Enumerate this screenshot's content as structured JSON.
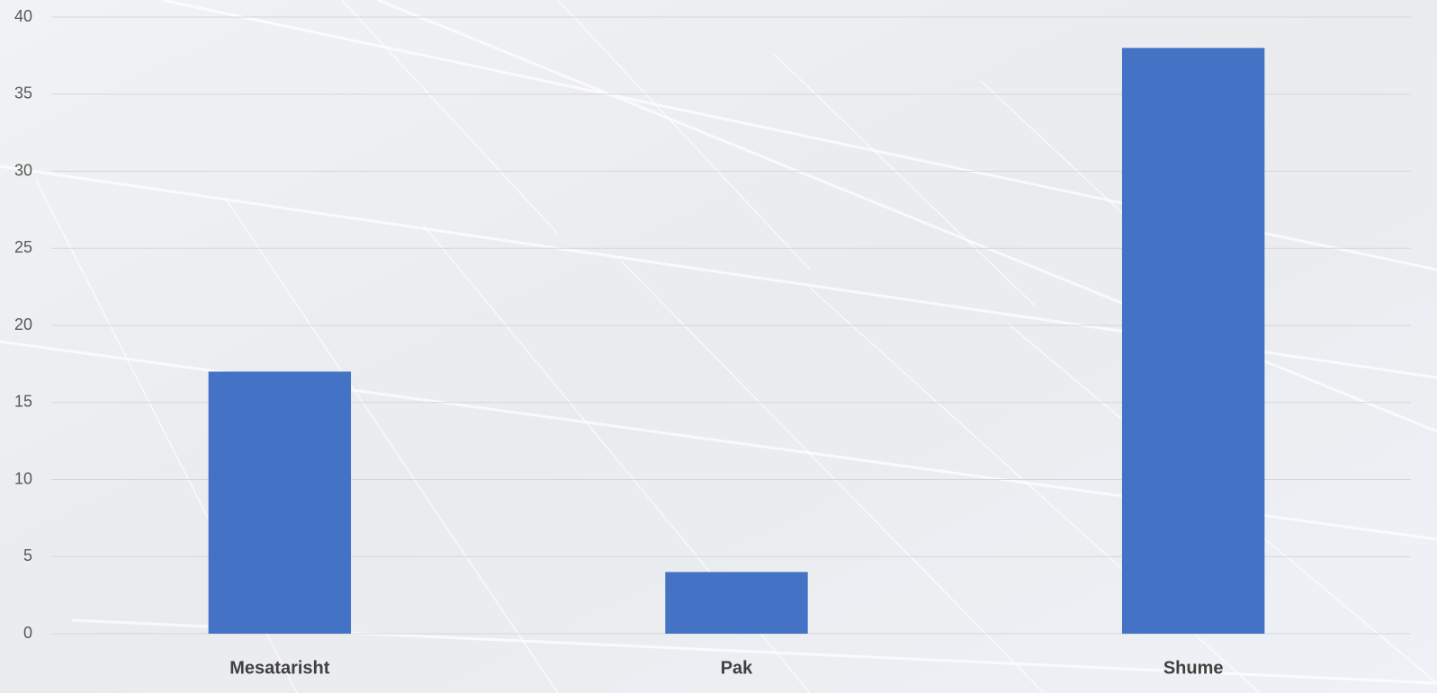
{
  "chart_data": {
    "type": "bar",
    "categories": [
      "Mesatarisht",
      "Pak",
      "Shume"
    ],
    "values": [
      17,
      4,
      38
    ],
    "color": "#4472c4",
    "ylim": [
      0,
      40
    ],
    "yticks": [
      0,
      5,
      10,
      15,
      20,
      25,
      30,
      35,
      40
    ],
    "grid": true
  }
}
